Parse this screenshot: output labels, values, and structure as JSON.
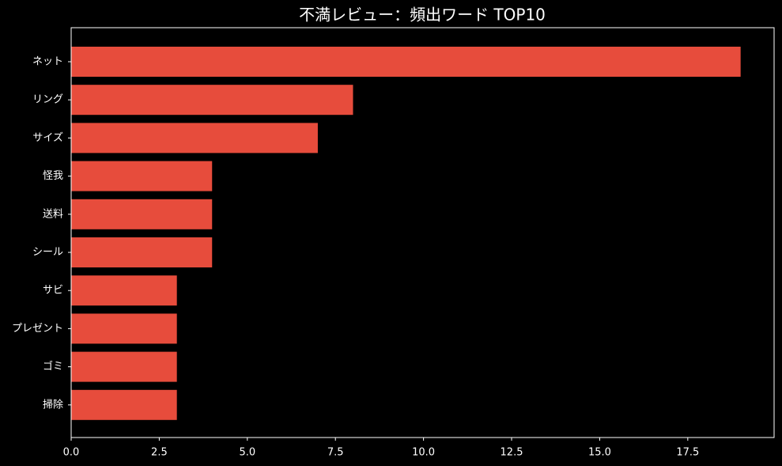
{
  "chart_data": {
    "type": "barh",
    "title": "不満レビュー：頻出ワード TOP10",
    "categories": [
      "ネット",
      "リング",
      "サイズ",
      "怪我",
      "送料",
      "シール",
      "サビ",
      "プレゼント",
      "ゴミ",
      "掃除"
    ],
    "values": [
      19,
      8,
      7,
      4,
      4,
      4,
      3,
      3,
      3,
      3
    ],
    "color": "#e74c3c",
    "xlim": [
      0,
      19.95
    ],
    "xticks": [
      {
        "value": 0,
        "label": "0.0"
      },
      2.5,
      {
        "value": 5,
        "label": "5.0"
      },
      7.5,
      {
        "value": 10,
        "label": "10.0"
      },
      12.5,
      {
        "value": 15,
        "label": "15.0"
      },
      17.5
    ]
  }
}
